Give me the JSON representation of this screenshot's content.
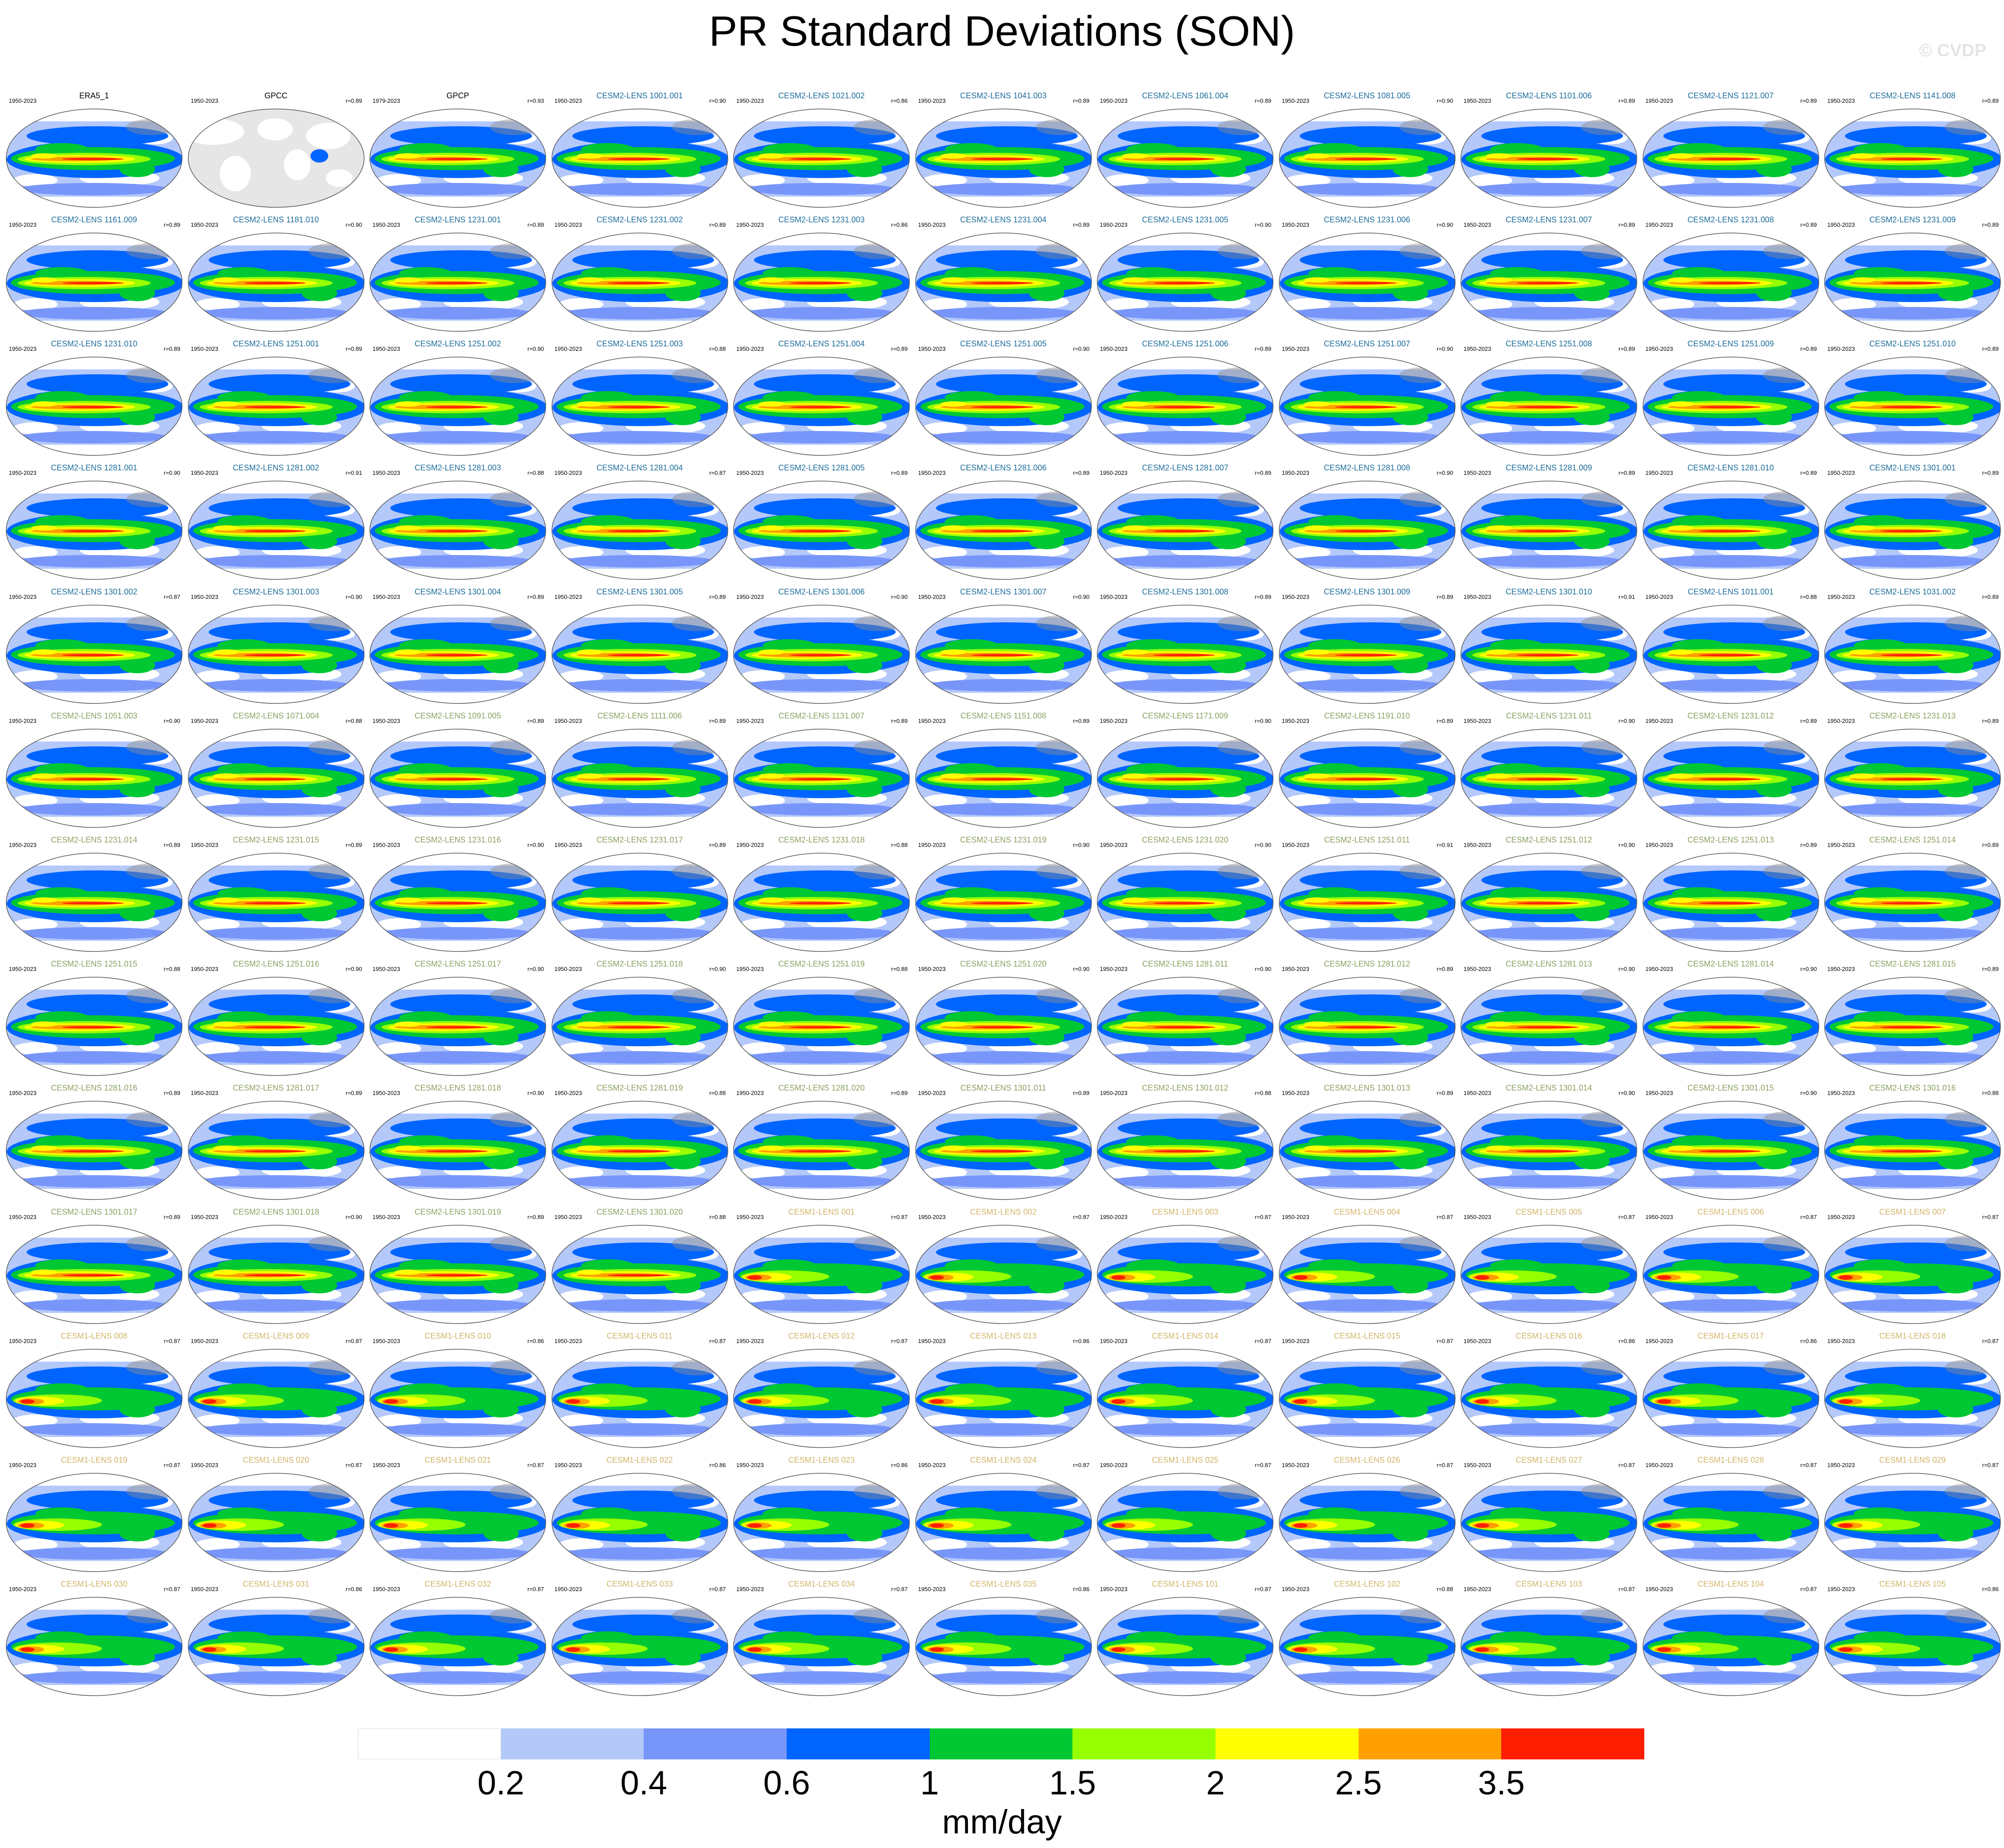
{
  "title": "PR Standard Deviations (SON)",
  "watermark": "© CVDP",
  "chart_data": {
    "type": "heatmap",
    "grid": {
      "rows": 13,
      "columns": 11
    },
    "panels": [
      {
        "name": "ERA5_1",
        "period": "1950-2023",
        "r": ""
      },
      {
        "name": "GPCC",
        "period": "1950-2023",
        "r": "r=0.89"
      },
      {
        "name": "GPCP",
        "period": "1979-2023",
        "r": "r=0.93"
      },
      {
        "name": "CESM2-LENS 1001.001",
        "period": "1950-2023",
        "r": "r=0.90"
      },
      {
        "name": "CESM2-LENS 1021.002",
        "period": "1950-2023",
        "r": "r=0.86"
      },
      {
        "name": "CESM2-LENS 1041.003",
        "period": "1950-2023",
        "r": "r=0.89"
      },
      {
        "name": "CESM2-LENS 1061.004",
        "period": "1950-2023",
        "r": "r=0.89"
      },
      {
        "name": "CESM2-LENS 1081.005",
        "period": "1950-2023",
        "r": "r=0.90"
      },
      {
        "name": "CESM2-LENS 1101.006",
        "period": "1950-2023",
        "r": "r=0.89"
      },
      {
        "name": "CESM2-LENS 1121.007",
        "period": "1950-2023",
        "r": "r=0.89"
      },
      {
        "name": "CESM2-LENS 1141.008",
        "period": "1950-2023",
        "r": "r=0.89"
      },
      {
        "name": "CESM2-LENS 1161.009",
        "period": "1950-2023",
        "r": "r=0.89"
      },
      {
        "name": "CESM2-LENS 1181.010",
        "period": "1950-2023",
        "r": "r=0.90"
      },
      {
        "name": "CESM2-LENS 1231.001",
        "period": "1950-2023",
        "r": "r=0.89"
      },
      {
        "name": "CESM2-LENS 1231.002",
        "period": "1950-2023",
        "r": "r=0.89"
      },
      {
        "name": "CESM2-LENS 1231.003",
        "period": "1950-2023",
        "r": "r=0.86"
      },
      {
        "name": "CESM2-LENS 1231.004",
        "period": "1950-2023",
        "r": "r=0.89"
      },
      {
        "name": "CESM2-LENS 1231.005",
        "period": "1950-2023",
        "r": "r=0.90"
      },
      {
        "name": "CESM2-LENS 1231.006",
        "period": "1950-2023",
        "r": "r=0.90"
      },
      {
        "name": "CESM2-LENS 1231.007",
        "period": "1950-2023",
        "r": "r=0.89"
      },
      {
        "name": "CESM2-LENS 1231.008",
        "period": "1950-2023",
        "r": "r=0.89"
      },
      {
        "name": "CESM2-LENS 1231.009",
        "period": "1950-2023",
        "r": "r=0.89"
      },
      {
        "name": "CESM2-LENS 1231.010",
        "period": "1950-2023",
        "r": "r=0.89"
      },
      {
        "name": "CESM2-LENS 1251.001",
        "period": "1950-2023",
        "r": "r=0.89"
      },
      {
        "name": "CESM2-LENS 1251.002",
        "period": "1950-2023",
        "r": "r=0.90"
      },
      {
        "name": "CESM2-LENS 1251.003",
        "period": "1950-2023",
        "r": "r=0.88"
      },
      {
        "name": "CESM2-LENS 1251.004",
        "period": "1950-2023",
        "r": "r=0.89"
      },
      {
        "name": "CESM2-LENS 1251.005",
        "period": "1950-2023",
        "r": "r=0.90"
      },
      {
        "name": "CESM2-LENS 1251.006",
        "period": "1950-2023",
        "r": "r=0.89"
      },
      {
        "name": "CESM2-LENS 1251.007",
        "period": "1950-2023",
        "r": "r=0.90"
      },
      {
        "name": "CESM2-LENS 1251.008",
        "period": "1950-2023",
        "r": "r=0.89"
      },
      {
        "name": "CESM2-LENS 1251.009",
        "period": "1950-2023",
        "r": "r=0.89"
      },
      {
        "name": "CESM2-LENS 1251.010",
        "period": "1950-2023",
        "r": "r=0.89"
      },
      {
        "name": "CESM2-LENS 1281.001",
        "period": "1950-2023",
        "r": "r=0.90"
      },
      {
        "name": "CESM2-LENS 1281.002",
        "period": "1950-2023",
        "r": "r=0.91"
      },
      {
        "name": "CESM2-LENS 1281.003",
        "period": "1950-2023",
        "r": "r=0.88"
      },
      {
        "name": "CESM2-LENS 1281.004",
        "period": "1950-2023",
        "r": "r=0.87"
      },
      {
        "name": "CESM2-LENS 1281.005",
        "period": "1950-2023",
        "r": "r=0.89"
      },
      {
        "name": "CESM2-LENS 1281.006",
        "period": "1950-2023",
        "r": "r=0.89"
      },
      {
        "name": "CESM2-LENS 1281.007",
        "period": "1950-2023",
        "r": "r=0.89"
      },
      {
        "name": "CESM2-LENS 1281.008",
        "period": "1950-2023",
        "r": "r=0.90"
      },
      {
        "name": "CESM2-LENS 1281.009",
        "period": "1950-2023",
        "r": "r=0.89"
      },
      {
        "name": "CESM2-LENS 1281.010",
        "period": "1950-2023",
        "r": "r=0.89"
      },
      {
        "name": "CESM2-LENS 1301.001",
        "period": "1950-2023",
        "r": "r=0.89"
      },
      {
        "name": "CESM2-LENS 1301.002",
        "period": "1950-2023",
        "r": "r=0.87"
      },
      {
        "name": "CESM2-LENS 1301.003",
        "period": "1950-2023",
        "r": "r=0.90"
      },
      {
        "name": "CESM2-LENS 1301.004",
        "period": "1950-2023",
        "r": "r=0.89"
      },
      {
        "name": "CESM2-LENS 1301.005",
        "period": "1950-2023",
        "r": "r=0.89"
      },
      {
        "name": "CESM2-LENS 1301.006",
        "period": "1950-2023",
        "r": "r=0.90"
      },
      {
        "name": "CESM2-LENS 1301.007",
        "period": "1950-2023",
        "r": "r=0.90"
      },
      {
        "name": "CESM2-LENS 1301.008",
        "period": "1950-2023",
        "r": "r=0.89"
      },
      {
        "name": "CESM2-LENS 1301.009",
        "period": "1950-2023",
        "r": "r=0.89"
      },
      {
        "name": "CESM2-LENS 1301.010",
        "period": "1950-2023",
        "r": "r=0.91"
      },
      {
        "name": "CESM2-LENS 1011.001",
        "period": "1950-2023",
        "r": "r=0.88"
      },
      {
        "name": "CESM2-LENS 1031.002",
        "period": "1950-2023",
        "r": "r=0.89"
      },
      {
        "name": "CESM2-LENS 1051.003",
        "period": "1950-2023",
        "r": "r=0.90"
      },
      {
        "name": "CESM2-LENS 1071.004",
        "period": "1950-2023",
        "r": "r=0.88"
      },
      {
        "name": "CESM2-LENS 1091.005",
        "period": "1950-2023",
        "r": "r=0.89"
      },
      {
        "name": "CESM2-LENS 1111.006",
        "period": "1950-2023",
        "r": "r=0.89"
      },
      {
        "name": "CESM2-LENS 1131.007",
        "period": "1950-2023",
        "r": "r=0.89"
      },
      {
        "name": "CESM2-LENS 1151.008",
        "period": "1950-2023",
        "r": "r=0.89"
      },
      {
        "name": "CESM2-LENS 1171.009",
        "period": "1950-2023",
        "r": "r=0.90"
      },
      {
        "name": "CESM2-LENS 1191.010",
        "period": "1950-2023",
        "r": "r=0.89"
      },
      {
        "name": "CESM2-LENS 1231.011",
        "period": "1950-2023",
        "r": "r=0.90"
      },
      {
        "name": "CESM2-LENS 1231.012",
        "period": "1950-2023",
        "r": "r=0.89"
      },
      {
        "name": "CESM2-LENS 1231.013",
        "period": "1950-2023",
        "r": "r=0.89"
      },
      {
        "name": "CESM2-LENS 1231.014",
        "period": "1950-2023",
        "r": "r=0.89"
      },
      {
        "name": "CESM2-LENS 1231.015",
        "period": "1950-2023",
        "r": "r=0.89"
      },
      {
        "name": "CESM2-LENS 1231.016",
        "period": "1950-2023",
        "r": "r=0.90"
      },
      {
        "name": "CESM2-LENS 1231.017",
        "period": "1950-2023",
        "r": "r=0.89"
      },
      {
        "name": "CESM2-LENS 1231.018",
        "period": "1950-2023",
        "r": "r=0.88"
      },
      {
        "name": "CESM2-LENS 1231.019",
        "period": "1950-2023",
        "r": "r=0.90"
      },
      {
        "name": "CESM2-LENS 1231.020",
        "period": "1950-2023",
        "r": "r=0.90"
      },
      {
        "name": "CESM2-LENS 1251.011",
        "period": "1950-2023",
        "r": "r=0.91"
      },
      {
        "name": "CESM2-LENS 1251.012",
        "period": "1950-2023",
        "r": "r=0.90"
      },
      {
        "name": "CESM2-LENS 1251.013",
        "period": "1950-2023",
        "r": "r=0.89"
      },
      {
        "name": "CESM2-LENS 1251.014",
        "period": "1950-2023",
        "r": "r=0.89"
      },
      {
        "name": "CESM2-LENS 1251.015",
        "period": "1950-2023",
        "r": "r=0.88"
      },
      {
        "name": "CESM2-LENS 1251.016",
        "period": "1950-2023",
        "r": "r=0.90"
      },
      {
        "name": "CESM2-LENS 1251.017",
        "period": "1950-2023",
        "r": "r=0.90"
      },
      {
        "name": "CESM2-LENS 1251.018",
        "period": "1950-2023",
        "r": "r=0.90"
      },
      {
        "name": "CESM2-LENS 1251.019",
        "period": "1950-2023",
        "r": "r=0.88"
      },
      {
        "name": "CESM2-LENS 1251.020",
        "period": "1950-2023",
        "r": "r=0.90"
      },
      {
        "name": "CESM2-LENS 1281.011",
        "period": "1950-2023",
        "r": "r=0.90"
      },
      {
        "name": "CESM2-LENS 1281.012",
        "period": "1950-2023",
        "r": "r=0.89"
      },
      {
        "name": "CESM2-LENS 1281.013",
        "period": "1950-2023",
        "r": "r=0.90"
      },
      {
        "name": "CESM2-LENS 1281.014",
        "period": "1950-2023",
        "r": "r=0.90"
      },
      {
        "name": "CESM2-LENS 1281.015",
        "period": "1950-2023",
        "r": "r=0.89"
      },
      {
        "name": "CESM2-LENS 1281.016",
        "period": "1950-2023",
        "r": "r=0.89"
      },
      {
        "name": "CESM2-LENS 1281.017",
        "period": "1950-2023",
        "r": "r=0.89"
      },
      {
        "name": "CESM2-LENS 1281.018",
        "period": "1950-2023",
        "r": "r=0.90"
      },
      {
        "name": "CESM2-LENS 1281.019",
        "period": "1950-2023",
        "r": "r=0.88"
      },
      {
        "name": "CESM2-LENS 1281.020",
        "period": "1950-2023",
        "r": "r=0.89"
      },
      {
        "name": "CESM2-LENS 1301.011",
        "period": "1950-2023",
        "r": "r=0.89"
      },
      {
        "name": "CESM2-LENS 1301.012",
        "period": "1950-2023",
        "r": "r=0.88"
      },
      {
        "name": "CESM2-LENS 1301.013",
        "period": "1950-2023",
        "r": "r=0.89"
      },
      {
        "name": "CESM2-LENS 1301.014",
        "period": "1950-2023",
        "r": "r=0.90"
      },
      {
        "name": "CESM2-LENS 1301.015",
        "period": "1950-2023",
        "r": "r=0.90"
      },
      {
        "name": "CESM2-LENS 1301.016",
        "period": "1950-2023",
        "r": "r=0.88"
      },
      {
        "name": "CESM2-LENS 1301.017",
        "period": "1950-2023",
        "r": "r=0.89"
      },
      {
        "name": "CESM2-LENS 1301.018",
        "period": "1950-2023",
        "r": "r=0.90"
      },
      {
        "name": "CESM2-LENS 1301.019",
        "period": "1950-2023",
        "r": "r=0.89"
      },
      {
        "name": "CESM2-LENS 1301.020",
        "period": "1950-2023",
        "r": "r=0.88"
      },
      {
        "name": "CESM1-LENS 001",
        "period": "1950-2023",
        "r": "r=0.87"
      },
      {
        "name": "CESM1-LENS 002",
        "period": "1950-2023",
        "r": "r=0.87"
      },
      {
        "name": "CESM1-LENS 003",
        "period": "1950-2023",
        "r": "r=0.87"
      },
      {
        "name": "CESM1-LENS 004",
        "period": "1950-2023",
        "r": "r=0.87"
      },
      {
        "name": "CESM1-LENS 005",
        "period": "1950-2023",
        "r": "r=0.87"
      },
      {
        "name": "CESM1-LENS 006",
        "period": "1950-2023",
        "r": "r=0.87"
      },
      {
        "name": "CESM1-LENS 007",
        "period": "1950-2023",
        "r": "r=0.87"
      },
      {
        "name": "CESM1-LENS 008",
        "period": "1950-2023",
        "r": "r=0.87"
      },
      {
        "name": "CESM1-LENS 009",
        "period": "1950-2023",
        "r": "r=0.87"
      },
      {
        "name": "CESM1-LENS 010",
        "period": "1950-2023",
        "r": "r=0.86"
      },
      {
        "name": "CESM1-LENS 011",
        "period": "1950-2023",
        "r": "r=0.87"
      },
      {
        "name": "CESM1-LENS 012",
        "period": "1950-2023",
        "r": "r=0.87"
      },
      {
        "name": "CESM1-LENS 013",
        "period": "1950-2023",
        "r": "r=0.86"
      },
      {
        "name": "CESM1-LENS 014",
        "period": "1950-2023",
        "r": "r=0.87"
      },
      {
        "name": "CESM1-LENS 015",
        "period": "1950-2023",
        "r": "r=0.87"
      },
      {
        "name": "CESM1-LENS 016",
        "period": "1950-2023",
        "r": "r=0.86"
      },
      {
        "name": "CESM1-LENS 017",
        "period": "1950-2023",
        "r": "r=0.86"
      },
      {
        "name": "CESM1-LENS 018",
        "period": "1950-2023",
        "r": "r=0.87"
      },
      {
        "name": "CESM1-LENS 019",
        "period": "1950-2023",
        "r": "r=0.87"
      },
      {
        "name": "CESM1-LENS 020",
        "period": "1950-2023",
        "r": "r=0.87"
      },
      {
        "name": "CESM1-LENS 021",
        "period": "1950-2023",
        "r": "r=0.87"
      },
      {
        "name": "CESM1-LENS 022",
        "period": "1950-2023",
        "r": "r=0.86"
      },
      {
        "name": "CESM1-LENS 023",
        "period": "1950-2023",
        "r": "r=0.86"
      },
      {
        "name": "CESM1-LENS 024",
        "period": "1950-2023",
        "r": "r=0.87"
      },
      {
        "name": "CESM1-LENS 025",
        "period": "1950-2023",
        "r": "r=0.87"
      },
      {
        "name": "CESM1-LENS 026",
        "period": "1950-2023",
        "r": "r=0.87"
      },
      {
        "name": "CESM1-LENS 027",
        "period": "1950-2023",
        "r": "r=0.87"
      },
      {
        "name": "CESM1-LENS 028",
        "period": "1950-2023",
        "r": "r=0.87"
      },
      {
        "name": "CESM1-LENS 029",
        "period": "1950-2023",
        "r": "r=0.87"
      },
      {
        "name": "CESM1-LENS 030",
        "period": "1950-2023",
        "r": "r=0.87"
      },
      {
        "name": "CESM1-LENS 031",
        "period": "1950-2023",
        "r": "r=0.86"
      },
      {
        "name": "CESM1-LENS 032",
        "period": "1950-2023",
        "r": "r=0.87"
      },
      {
        "name": "CESM1-LENS 033",
        "period": "1950-2023",
        "r": "r=0.87"
      },
      {
        "name": "CESM1-LENS 034",
        "period": "1950-2023",
        "r": "r=0.87"
      },
      {
        "name": "CESM1-LENS 035",
        "period": "1950-2023",
        "r": "r=0.86"
      },
      {
        "name": "CESM1-LENS 101",
        "period": "1950-2023",
        "r": "r=0.87"
      },
      {
        "name": "CESM1-LENS 102",
        "period": "1950-2023",
        "r": "r=0.88"
      },
      {
        "name": "CESM1-LENS 103",
        "period": "1950-2023",
        "r": "r=0.87"
      },
      {
        "name": "CESM1-LENS 104",
        "period": "1950-2023",
        "r": "r=0.87"
      },
      {
        "name": "CESM1-LENS 105",
        "period": "1950-2023",
        "r": "r=0.86"
      }
    ],
    "colorbar": {
      "colors": [
        "#ffffff",
        "#b4c8fa",
        "#7896fa",
        "#0064ff",
        "#00c832",
        "#96ff00",
        "#ffff00",
        "#ffa000",
        "#ff1e00"
      ],
      "ticks": [
        "0.2",
        "0.4",
        "0.6",
        "1",
        "1.5",
        "2",
        "2.5",
        "3.5"
      ],
      "units": "mm/day"
    },
    "name_colors": {
      "observations": "#000000",
      "CESM2-LENS a": "#1e6e9b",
      "CESM2-LENS b": "#8aa262",
      "CESM1-LENS": "#d2b56a"
    },
    "gpcc_land_only": true
  }
}
